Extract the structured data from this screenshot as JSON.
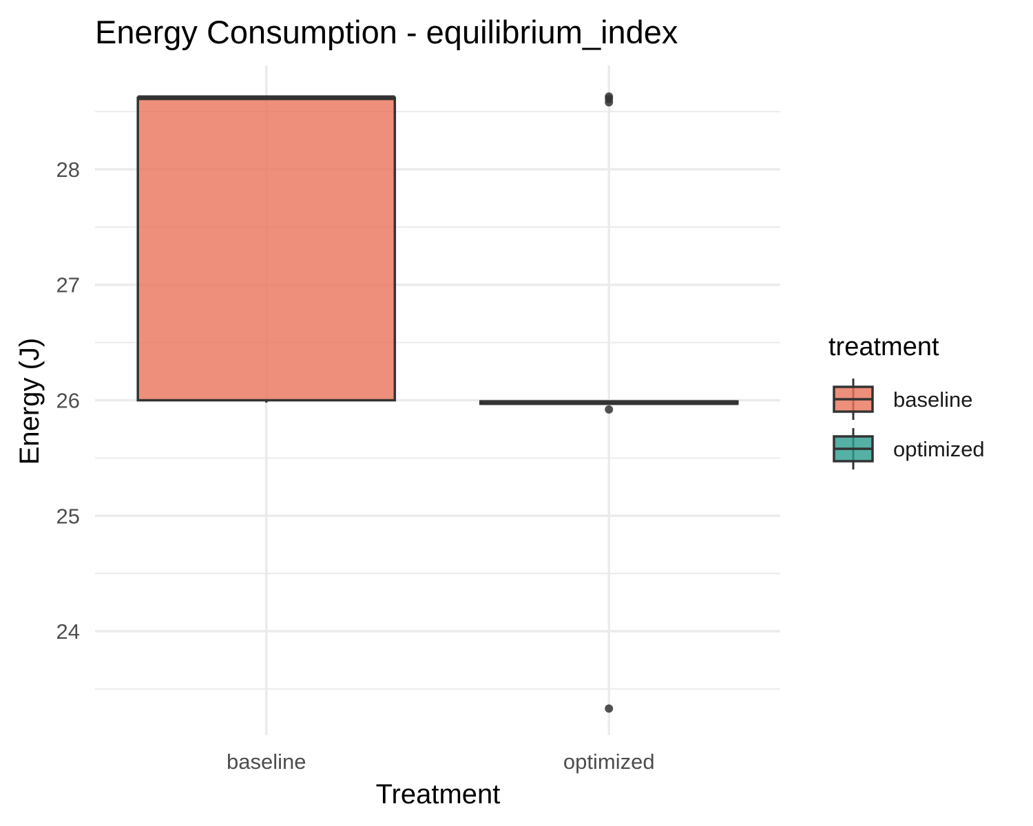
{
  "chart_data": {
    "type": "boxplot",
    "title": "Energy Consumption - equilibrium_index",
    "xlabel": "Treatment",
    "ylabel": "Energy (J)",
    "categories": [
      "baseline",
      "optimized"
    ],
    "y_ticks": [
      "24",
      "25",
      "26",
      "27",
      "28"
    ],
    "ylim": [
      23.1,
      28.9
    ],
    "grid": true,
    "legend": {
      "title": "treatment",
      "position": "right",
      "items": [
        {
          "label": "baseline",
          "color": "#E8735A"
        },
        {
          "label": "optimized",
          "color": "#2A9D8F"
        }
      ]
    },
    "boxes": [
      {
        "category": "baseline",
        "whisker_low": 25.98,
        "q1": 26.0,
        "median": 28.62,
        "q3": 28.62,
        "whisker_high": 28.64,
        "outliers": [],
        "color": "#E8735A"
      },
      {
        "category": "optimized",
        "whisker_low": 25.97,
        "q1": 25.97,
        "median": 25.98,
        "q3": 25.99,
        "whisker_high": 26.0,
        "outliers": [
          28.58,
          28.61,
          28.63,
          25.92,
          23.33
        ],
        "color": "#2A9D8F"
      }
    ]
  }
}
